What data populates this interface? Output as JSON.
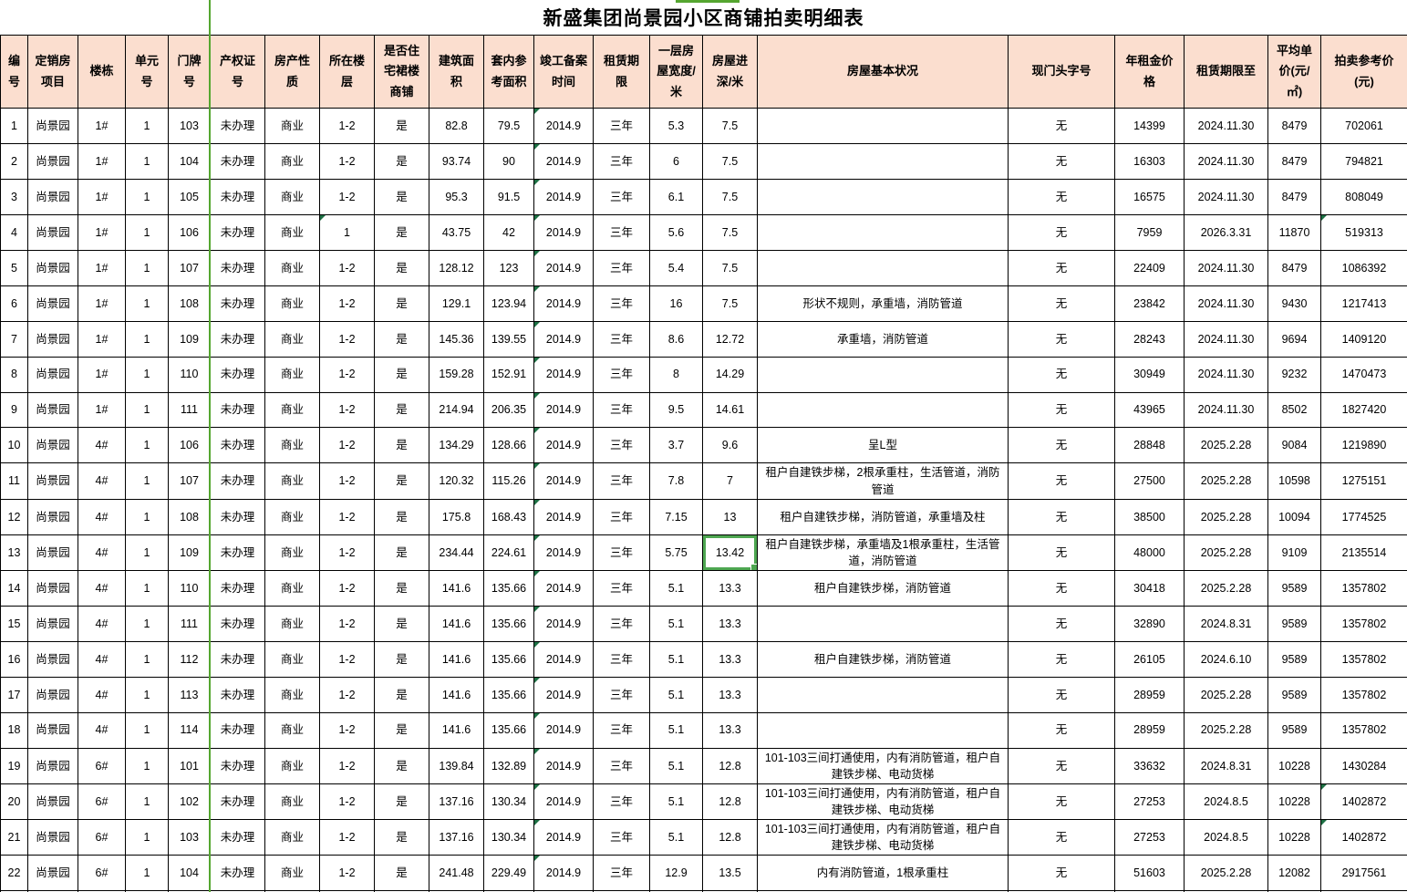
{
  "title": "新盛集团尚景园小区商铺拍卖明细表",
  "colors": {
    "header_bg": "#fbdecf",
    "grid_border": "#000000",
    "page_break_green": "#55a630",
    "selection_green": "#4ea751",
    "error_indicator_green": "#1d7044"
  },
  "table": {
    "columns": [
      {
        "key": "id",
        "label": "编号"
      },
      {
        "key": "project",
        "label": "定销房项目"
      },
      {
        "key": "building",
        "label": "楼栋"
      },
      {
        "key": "unit",
        "label": "单元号"
      },
      {
        "key": "door",
        "label": "门牌号"
      },
      {
        "key": "cert",
        "label": "产权证号"
      },
      {
        "key": "nature",
        "label": "房产性质"
      },
      {
        "key": "floor",
        "label": "所在楼层"
      },
      {
        "key": "podium",
        "label": "是否住宅裙楼商铺"
      },
      {
        "key": "area",
        "label": "建筑面积"
      },
      {
        "key": "inner_area",
        "label": "套内参考面积"
      },
      {
        "key": "completion",
        "label": "竣工备案时间"
      },
      {
        "key": "lease_term",
        "label": "租赁期限"
      },
      {
        "key": "width",
        "label": "一层房屋宽度/米"
      },
      {
        "key": "depth",
        "label": "房屋进深/米"
      },
      {
        "key": "condition",
        "label": "房屋基本状况"
      },
      {
        "key": "sign",
        "label": "现门头字号"
      },
      {
        "key": "rent",
        "label": "年租金价格"
      },
      {
        "key": "lease_until",
        "label": "租赁期限至"
      },
      {
        "key": "unit_price",
        "label": "平均单价(元/㎡)"
      },
      {
        "key": "auction_price",
        "label": "拍卖参考价(元)"
      }
    ],
    "rows": [
      [
        "1",
        "尚景园",
        "1#",
        "1",
        "103",
        "未办理",
        "商业",
        "1-2",
        "是",
        "82.8",
        "79.5",
        "2014.9",
        "三年",
        "5.3",
        "7.5",
        "",
        "无",
        "14399",
        "2024.11.30",
        "8479",
        "702061"
      ],
      [
        "2",
        "尚景园",
        "1#",
        "1",
        "104",
        "未办理",
        "商业",
        "1-2",
        "是",
        "93.74",
        "90",
        "2014.9",
        "三年",
        "6",
        "7.5",
        "",
        "无",
        "16303",
        "2024.11.30",
        "8479",
        "794821"
      ],
      [
        "3",
        "尚景园",
        "1#",
        "1",
        "105",
        "未办理",
        "商业",
        "1-2",
        "是",
        "95.3",
        "91.5",
        "2014.9",
        "三年",
        "6.1",
        "7.5",
        "",
        "无",
        "16575",
        "2024.11.30",
        "8479",
        "808049"
      ],
      [
        "4",
        "尚景园",
        "1#",
        "1",
        "106",
        "未办理",
        "商业",
        "1",
        "是",
        "43.75",
        "42",
        "2014.9",
        "三年",
        "5.6",
        "7.5",
        "",
        "无",
        "7959",
        "2026.3.31",
        "11870",
        "519313"
      ],
      [
        "5",
        "尚景园",
        "1#",
        "1",
        "107",
        "未办理",
        "商业",
        "1-2",
        "是",
        "128.12",
        "123",
        "2014.9",
        "三年",
        "5.4",
        "7.5",
        "",
        "无",
        "22409",
        "2024.11.30",
        "8479",
        "1086392"
      ],
      [
        "6",
        "尚景园",
        "1#",
        "1",
        "108",
        "未办理",
        "商业",
        "1-2",
        "是",
        "129.1",
        "123.94",
        "2014.9",
        "三年",
        "16",
        "7.5",
        "形状不规则，承重墙，消防管道",
        "无",
        "23842",
        "2024.11.30",
        "9430",
        "1217413"
      ],
      [
        "7",
        "尚景园",
        "1#",
        "1",
        "109",
        "未办理",
        "商业",
        "1-2",
        "是",
        "145.36",
        "139.55",
        "2014.9",
        "三年",
        "8.6",
        "12.72",
        "承重墙，消防管道",
        "无",
        "28243",
        "2024.11.30",
        "9694",
        "1409120"
      ],
      [
        "8",
        "尚景园",
        "1#",
        "1",
        "110",
        "未办理",
        "商业",
        "1-2",
        "是",
        "159.28",
        "152.91",
        "2014.9",
        "三年",
        "8",
        "14.29",
        "",
        "无",
        "30949",
        "2024.11.30",
        "9232",
        "1470473"
      ],
      [
        "9",
        "尚景园",
        "1#",
        "1",
        "111",
        "未办理",
        "商业",
        "1-2",
        "是",
        "214.94",
        "206.35",
        "2014.9",
        "三年",
        "9.5",
        "14.61",
        "",
        "无",
        "43965",
        "2024.11.30",
        "8502",
        "1827420"
      ],
      [
        "10",
        "尚景园",
        "4#",
        "1",
        "106",
        "未办理",
        "商业",
        "1-2",
        "是",
        "134.29",
        "128.66",
        "2014.9",
        "三年",
        "3.7",
        "9.6",
        "呈L型",
        "无",
        "28848",
        "2025.2.28",
        "9084",
        "1219890"
      ],
      [
        "11",
        "尚景园",
        "4#",
        "1",
        "107",
        "未办理",
        "商业",
        "1-2",
        "是",
        "120.32",
        "115.26",
        "2014.9",
        "三年",
        "7.8",
        "7",
        "租户自建铁步梯，2根承重柱，生活管道，消防管道",
        "无",
        "27500",
        "2025.2.28",
        "10598",
        "1275151"
      ],
      [
        "12",
        "尚景园",
        "4#",
        "1",
        "108",
        "未办理",
        "商业",
        "1-2",
        "是",
        "175.8",
        "168.43",
        "2014.9",
        "三年",
        "7.15",
        "13",
        "租户自建铁步梯，消防管道，承重墙及柱",
        "无",
        "38500",
        "2025.2.28",
        "10094",
        "1774525"
      ],
      [
        "13",
        "尚景园",
        "4#",
        "1",
        "109",
        "未办理",
        "商业",
        "1-2",
        "是",
        "234.44",
        "224.61",
        "2014.9",
        "三年",
        "5.75",
        "13.42",
        "租户自建铁步梯，承重墙及1根承重柱，生活管道，消防管道",
        "无",
        "48000",
        "2025.2.28",
        "9109",
        "2135514"
      ],
      [
        "14",
        "尚景园",
        "4#",
        "1",
        "110",
        "未办理",
        "商业",
        "1-2",
        "是",
        "141.6",
        "135.66",
        "2014.9",
        "三年",
        "5.1",
        "13.3",
        "租户自建铁步梯，消防管道",
        "无",
        "30418",
        "2025.2.28",
        "9589",
        "1357802"
      ],
      [
        "15",
        "尚景园",
        "4#",
        "1",
        "111",
        "未办理",
        "商业",
        "1-2",
        "是",
        "141.6",
        "135.66",
        "2014.9",
        "三年",
        "5.1",
        "13.3",
        "",
        "无",
        "32890",
        "2024.8.31",
        "9589",
        "1357802"
      ],
      [
        "16",
        "尚景园",
        "4#",
        "1",
        "112",
        "未办理",
        "商业",
        "1-2",
        "是",
        "141.6",
        "135.66",
        "2014.9",
        "三年",
        "5.1",
        "13.3",
        "租户自建铁步梯，消防管道",
        "无",
        "26105",
        "2024.6.10",
        "9589",
        "1357802"
      ],
      [
        "17",
        "尚景园",
        "4#",
        "1",
        "113",
        "未办理",
        "商业",
        "1-2",
        "是",
        "141.6",
        "135.66",
        "2014.9",
        "三年",
        "5.1",
        "13.3",
        "",
        "无",
        "28959",
        "2025.2.28",
        "9589",
        "1357802"
      ],
      [
        "18",
        "尚景园",
        "4#",
        "1",
        "114",
        "未办理",
        "商业",
        "1-2",
        "是",
        "141.6",
        "135.66",
        "2014.9",
        "三年",
        "5.1",
        "13.3",
        "",
        "无",
        "28959",
        "2025.2.28",
        "9589",
        "1357802"
      ],
      [
        "19",
        "尚景园",
        "6#",
        "1",
        "101",
        "未办理",
        "商业",
        "1-2",
        "是",
        "139.84",
        "132.89",
        "2014.9",
        "三年",
        "5.1",
        "12.8",
        "101-103三间打通使用，内有消防管道，租户自建铁步梯、电动货梯",
        "无",
        "33632",
        "2024.8.31",
        "10228",
        "1430284"
      ],
      [
        "20",
        "尚景园",
        "6#",
        "1",
        "102",
        "未办理",
        "商业",
        "1-2",
        "是",
        "137.16",
        "130.34",
        "2014.9",
        "三年",
        "5.1",
        "12.8",
        "101-103三间打通使用，内有消防管道，租户自建铁步梯、电动货梯",
        "无",
        "27253",
        "2024.8.5",
        "10228",
        "1402872"
      ],
      [
        "21",
        "尚景园",
        "6#",
        "1",
        "103",
        "未办理",
        "商业",
        "1-2",
        "是",
        "137.16",
        "130.34",
        "2014.9",
        "三年",
        "5.1",
        "12.8",
        "101-103三间打通使用，内有消防管道，租户自建铁步梯、电动货梯",
        "无",
        "27253",
        "2024.8.5",
        "10228",
        "1402872"
      ],
      [
        "22",
        "尚景园",
        "6#",
        "1",
        "104",
        "未办理",
        "商业",
        "1-2",
        "是",
        "241.48",
        "229.49",
        "2014.9",
        "三年",
        "12.9",
        "13.5",
        "内有消防管道，1根承重柱",
        "无",
        "51603",
        "2025.2.28",
        "12082",
        "2917561"
      ]
    ],
    "selected_cell": {
      "row": "13",
      "col": "depth"
    },
    "error_markers": [
      {
        "row": "1",
        "col": "completion"
      },
      {
        "row": "2",
        "col": "completion"
      },
      {
        "row": "3",
        "col": "completion"
      },
      {
        "row": "4",
        "col": "completion"
      },
      {
        "row": "5",
        "col": "completion"
      },
      {
        "row": "6",
        "col": "completion"
      },
      {
        "row": "7",
        "col": "completion"
      },
      {
        "row": "8",
        "col": "completion"
      },
      {
        "row": "9",
        "col": "completion"
      },
      {
        "row": "10",
        "col": "completion"
      },
      {
        "row": "11",
        "col": "completion"
      },
      {
        "row": "12",
        "col": "completion"
      },
      {
        "row": "13",
        "col": "completion"
      },
      {
        "row": "14",
        "col": "completion"
      },
      {
        "row": "15",
        "col": "completion"
      },
      {
        "row": "16",
        "col": "completion"
      },
      {
        "row": "17",
        "col": "completion"
      },
      {
        "row": "18",
        "col": "completion"
      },
      {
        "row": "19",
        "col": "completion"
      },
      {
        "row": "20",
        "col": "completion"
      },
      {
        "row": "21",
        "col": "completion"
      },
      {
        "row": "22",
        "col": "completion"
      },
      {
        "row": "4",
        "col": "floor"
      },
      {
        "row": "4",
        "col": "auction_price"
      },
      {
        "row": "20",
        "col": "auction_price"
      },
      {
        "row": "21",
        "col": "auction_price"
      }
    ]
  }
}
